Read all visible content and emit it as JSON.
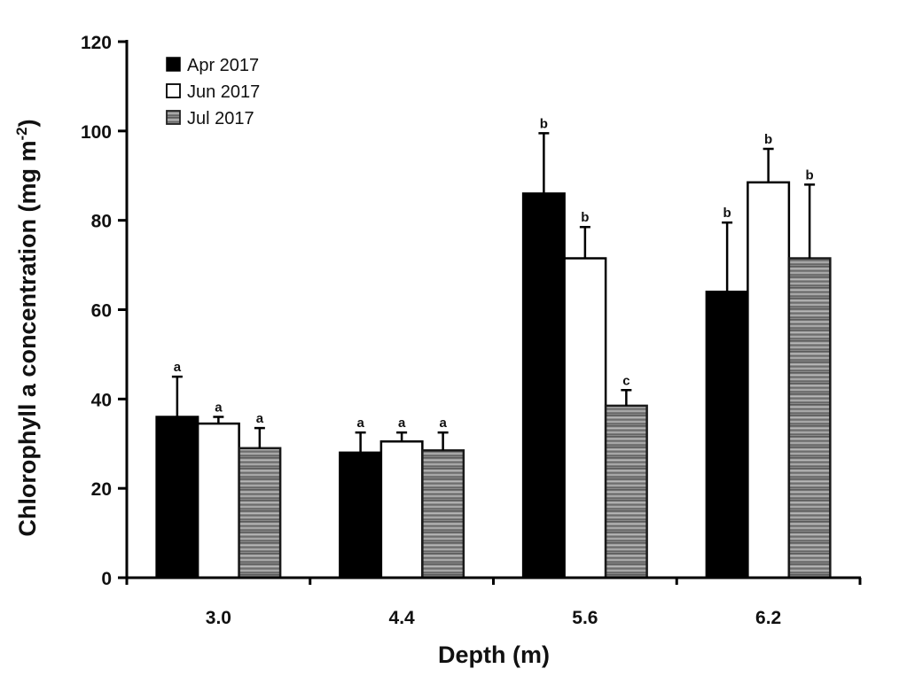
{
  "chart_data": {
    "type": "bar",
    "title": "",
    "xlabel": "Depth (m)",
    "ylabel_main": "Chlorophyll a concentration (mg m",
    "ylabel_sup": "-2",
    "ylabel_close": ")",
    "ylim": [
      0,
      120
    ],
    "yticks": [
      0,
      20,
      40,
      60,
      80,
      100,
      120
    ],
    "grid": false,
    "legend_position": "top-left",
    "categories": [
      "3.0",
      "4.4",
      "5.6",
      "6.2"
    ],
    "series": [
      {
        "name": "Apr 2017",
        "fill": "solid-black",
        "color": "#000000",
        "values": [
          36,
          28,
          86,
          64
        ],
        "errors": [
          9,
          4.5,
          13.5,
          15.5
        ],
        "sig_labels": [
          "a",
          "a",
          "b",
          "b"
        ]
      },
      {
        "name": "Jun 2017",
        "fill": "white",
        "color": "#ffffff",
        "values": [
          34.5,
          30.5,
          71.5,
          88.5
        ],
        "errors": [
          1.5,
          2,
          7,
          7.5
        ],
        "sig_labels": [
          "a",
          "a",
          "b",
          "b"
        ]
      },
      {
        "name": "Jul 2017",
        "fill": "horizontal-stripes-grey",
        "color": "#888888",
        "values": [
          29,
          28.5,
          38.5,
          71.5
        ],
        "errors": [
          4.5,
          4,
          3.5,
          16.5
        ],
        "sig_labels": [
          "a",
          "a",
          "c",
          "b"
        ]
      }
    ]
  }
}
